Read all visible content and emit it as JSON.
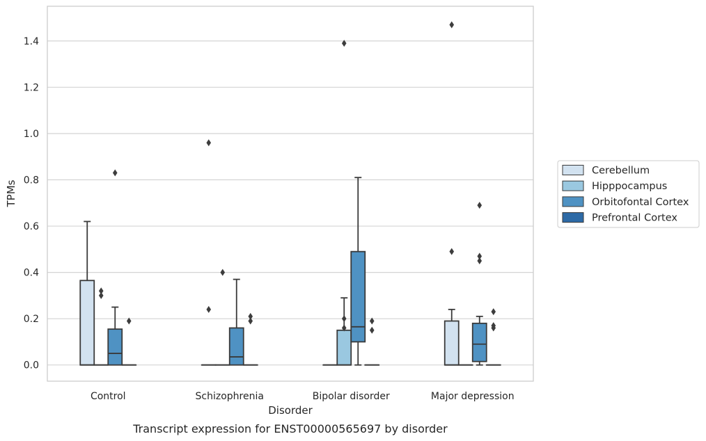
{
  "caption": "Transcript expression for ENST00000565697 by disorder",
  "chart_data": {
    "type": "box",
    "title": "",
    "xlabel": "Disorder",
    "ylabel": "TPMs",
    "ylim": [
      -0.07,
      1.55
    ],
    "yticks": [
      0.0,
      0.2,
      0.4,
      0.6,
      0.8,
      1.0,
      1.2,
      1.4
    ],
    "ytick_labels": [
      "0.0",
      "0.2",
      "0.4",
      "0.6",
      "0.8",
      "1.0",
      "1.2",
      "1.4"
    ],
    "grid": "horizontal",
    "legend_position": "right",
    "categories": [
      "Control",
      "Schizophrenia",
      "Bipolar disorder",
      "Major depression"
    ],
    "series": [
      {
        "name": "Cerebellum",
        "color": "#d2e2f0",
        "boxes": [
          {
            "whislo": 0.0,
            "q1": 0.0,
            "med": 0.0,
            "q3": 0.365,
            "whishi": 0.62,
            "fliers": []
          },
          {
            "whislo": 0.0,
            "q1": 0.0,
            "med": 0.0,
            "q3": 0.0,
            "whishi": 0.0,
            "fliers": [
              0.24,
              0.96
            ]
          },
          {
            "whislo": 0.0,
            "q1": 0.0,
            "med": 0.0,
            "q3": 0.0,
            "whishi": 0.0,
            "fliers": []
          },
          {
            "whislo": 0.0,
            "q1": 0.0,
            "med": 0.0,
            "q3": 0.19,
            "whishi": 0.24,
            "fliers": [
              0.49,
              1.47
            ]
          }
        ]
      },
      {
        "name": "Hipppocampus",
        "color": "#9ac8e0",
        "boxes": [
          {
            "whislo": 0.0,
            "q1": 0.0,
            "med": 0.0,
            "q3": 0.0,
            "whishi": 0.0,
            "fliers": [
              0.32,
              0.3
            ]
          },
          {
            "whislo": 0.0,
            "q1": 0.0,
            "med": 0.0,
            "q3": 0.0,
            "whishi": 0.0,
            "fliers": [
              0.4
            ]
          },
          {
            "whislo": 0.0,
            "q1": 0.0,
            "med": 0.0,
            "q3": 0.15,
            "whishi": 0.29,
            "fliers": [
              0.2,
              0.16,
              1.39
            ]
          },
          {
            "whislo": 0.0,
            "q1": 0.0,
            "med": 0.0,
            "q3": 0.0,
            "whishi": 0.0,
            "fliers": []
          }
        ]
      },
      {
        "name": "Orbitofontal Cortex",
        "color": "#4f92c3",
        "boxes": [
          {
            "whislo": 0.0,
            "q1": 0.0,
            "med": 0.05,
            "q3": 0.155,
            "whishi": 0.25,
            "fliers": [
              0.83
            ]
          },
          {
            "whislo": 0.0,
            "q1": 0.0,
            "med": 0.035,
            "q3": 0.16,
            "whishi": 0.37,
            "fliers": []
          },
          {
            "whislo": 0.0,
            "q1": 0.1,
            "med": 0.165,
            "q3": 0.49,
            "whishi": 0.81,
            "fliers": []
          },
          {
            "whislo": 0.0,
            "q1": 0.015,
            "med": 0.09,
            "q3": 0.18,
            "whishi": 0.21,
            "fliers": [
              0.45,
              0.47,
              0.69
            ]
          }
        ]
      },
      {
        "name": "Prefrontal Cortex",
        "color": "#2d6aa6",
        "boxes": [
          {
            "whislo": 0.0,
            "q1": 0.0,
            "med": 0.0,
            "q3": 0.0,
            "whishi": 0.0,
            "fliers": [
              0.19
            ]
          },
          {
            "whislo": 0.0,
            "q1": 0.0,
            "med": 0.0,
            "q3": 0.0,
            "whishi": 0.0,
            "fliers": [
              0.19,
              0.21
            ]
          },
          {
            "whislo": 0.0,
            "q1": 0.0,
            "med": 0.0,
            "q3": 0.0,
            "whishi": 0.0,
            "fliers": [
              0.15,
              0.19
            ]
          },
          {
            "whislo": 0.0,
            "q1": 0.0,
            "med": 0.0,
            "q3": 0.0,
            "whishi": 0.0,
            "fliers": [
              0.16,
              0.17,
              0.23
            ]
          }
        ]
      }
    ],
    "colors": {
      "edge": "#3a3a3a",
      "grid": "#d4d4d4",
      "frame": "#cccccc",
      "flier": "#3d3d3d"
    }
  }
}
